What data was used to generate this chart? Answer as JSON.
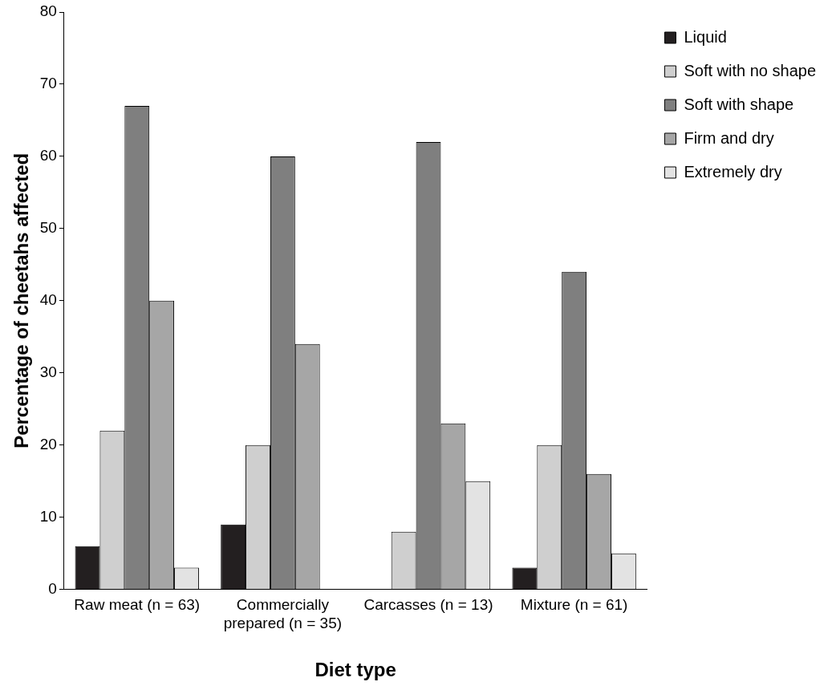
{
  "chart_data": {
    "type": "bar",
    "xlabel": "Diet type",
    "ylabel": "Percentage of cheetahs affected",
    "categories": [
      "Raw meat (n = 63)",
      "Commercially prepared (n = 35)",
      "Carcasses (n = 13)",
      "Mixture (n = 61)"
    ],
    "series": [
      {
        "name": "Liquid",
        "color": "#231f20",
        "values": [
          6,
          9,
          0,
          3
        ]
      },
      {
        "name": "Soft with no shape",
        "color": "#cfcfcf",
        "values": [
          22,
          20,
          8,
          20
        ]
      },
      {
        "name": "Soft with shape",
        "color": "#7f7f7f",
        "values": [
          67,
          60,
          62,
          44
        ]
      },
      {
        "name": "Firm and dry",
        "color": "#a6a6a6",
        "values": [
          40,
          34,
          23,
          16
        ]
      },
      {
        "name": "Extremely dry",
        "color": "#e3e3e3",
        "values": [
          3,
          0,
          15,
          5
        ]
      }
    ],
    "ylim": [
      0,
      80
    ],
    "yticks": [
      0,
      10,
      20,
      30,
      40,
      50,
      60,
      70,
      80
    ],
    "grid": false,
    "legend": "top right"
  }
}
